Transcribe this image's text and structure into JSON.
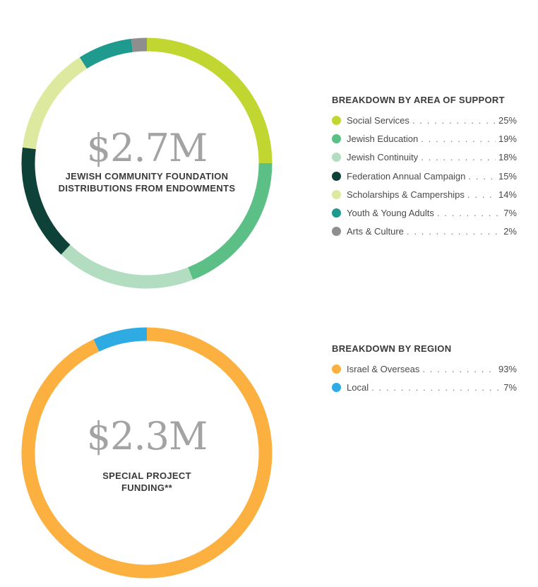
{
  "chart_data": [
    {
      "type": "pie",
      "amount": "$2.7M",
      "caption_lines": [
        "JEWISH COMMUNITY FOUNDATION",
        "DISTRIBUTIONS FROM ENDOWMENTS"
      ],
      "legend_title": "BREAKDOWN BY AREA OF SUPPORT",
      "slices": [
        {
          "label": "Social Services",
          "value": 25,
          "value_text": "25%",
          "color": "#c2d631"
        },
        {
          "label": "Jewish Education",
          "value": 19,
          "value_text": "19%",
          "color": "#5bbf86"
        },
        {
          "label": "Jewish Continuity",
          "value": 18,
          "value_text": "18%",
          "color": "#b2ddc0"
        },
        {
          "label": "Federation Annual Campaign",
          "value": 15,
          "value_text": "15%",
          "color": "#0e4138"
        },
        {
          "label": "Scholarships & Camperships",
          "value": 14,
          "value_text": "14%",
          "color": "#dde99e"
        },
        {
          "label": "Youth & Young Adults",
          "value": 7,
          "value_text": "7%",
          "color": "#1e9b8e"
        },
        {
          "label": "Arts & Culture",
          "value": 2,
          "value_text": "2%",
          "color": "#8e8e8e"
        }
      ]
    },
    {
      "type": "pie",
      "amount": "$2.3M",
      "caption_lines": [
        "SPECIAL PROJECT",
        "FUNDING**"
      ],
      "legend_title": "BREAKDOWN BY REGION",
      "slices": [
        {
          "label": "Israel & Overseas",
          "value": 93,
          "value_text": "93%",
          "color": "#fbb040"
        },
        {
          "label": "Local",
          "value": 7,
          "value_text": "7%",
          "color": "#2eabe2"
        }
      ]
    }
  ]
}
